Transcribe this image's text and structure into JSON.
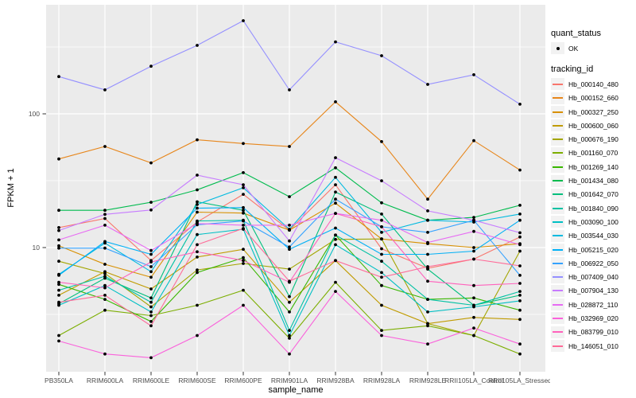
{
  "figure": {
    "background": "#FFFFFF",
    "panel_background": "#EBEBEB",
    "grid_color": "#FFFFFF",
    "point_color": "#000000",
    "axis_text_color": "#4D4D4D",
    "axis_tick_color": "#333333"
  },
  "legend": {
    "position": "right",
    "key_background": "#F2F2F2",
    "quant_status_title": "quant_status",
    "quant_ok_label": "OK",
    "tracking_id_title": "tracking_id"
  },
  "chart_data": {
    "type": "line",
    "title": "",
    "xlabel": "sample_name",
    "ylabel": "FPKM + 1",
    "y_scale": "log10",
    "y_ticks": [
      10,
      100
    ],
    "y_tick_labels": [
      "10",
      "100"
    ],
    "y_minor_gridlines": [
      3.162,
      31.62,
      316.2
    ],
    "ylim": [
      1.18,
      655
    ],
    "grid": true,
    "legend_position": "right",
    "point_marker": "black dot (quant_status OK)",
    "x_categories": [
      "PB350LA",
      "RRIM600LA",
      "RRIM600LE",
      "RRIM600SE",
      "RRIM600PE",
      "RRIM901LA",
      "RRIM928BA",
      "RRIM928LA",
      "RRIM928LE",
      "RRII105LA_Control",
      "RRII105LA_Stressed"
    ],
    "series": [
      {
        "name": "Hb_000140_480",
        "color": "#F8766D",
        "values": [
          14.1,
          16.5,
          8.0,
          15.5,
          25.0,
          13.5,
          29.5,
          9.8,
          7.0,
          8.2,
          12.0
        ]
      },
      {
        "name": "Hb_000152_660",
        "color": "#E7861B",
        "values": [
          46,
          57,
          43,
          64,
          60,
          57,
          123,
          62,
          23,
          63,
          38
        ]
      },
      {
        "name": "Hb_000327_250",
        "color": "#D89000",
        "values": [
          10.3,
          7.5,
          6.0,
          18.4,
          18.1,
          13.5,
          21.5,
          11.6,
          10.7,
          10.0,
          10.7
        ]
      },
      {
        "name": "Hb_000600_060",
        "color": "#C09B00",
        "values": [
          4.4,
          6.6,
          4.9,
          8.5,
          9.7,
          3.9,
          8.0,
          3.7,
          2.7,
          3.0,
          2.9
        ]
      },
      {
        "name": "Hb_000676_190",
        "color": "#A3A500",
        "values": [
          7.9,
          6.4,
          3.6,
          6.8,
          7.6,
          6.9,
          11.5,
          11.6,
          2.7,
          2.2,
          9.4
        ]
      },
      {
        "name": "Hb_001160_070",
        "color": "#7CAE00",
        "values": [
          2.2,
          3.4,
          3.1,
          3.7,
          4.8,
          2.1,
          5.5,
          2.4,
          2.6,
          2.2,
          1.6
        ]
      },
      {
        "name": "Hb_001269_140",
        "color": "#39B600",
        "values": [
          5.3,
          4.1,
          2.8,
          6.5,
          8.4,
          3.3,
          12.4,
          5.2,
          4.1,
          4.2,
          3.4
        ]
      },
      {
        "name": "Hb_001434_080",
        "color": "#00BB4E",
        "values": [
          19,
          19,
          21.8,
          27,
          36.3,
          24,
          39.5,
          21.6,
          16,
          16.8,
          20.7
        ]
      },
      {
        "name": "Hb_001642_070",
        "color": "#00BF7D",
        "values": [
          3.8,
          5.9,
          4.2,
          22,
          19,
          4.3,
          26,
          17.8,
          6.9,
          3.7,
          4.4
        ]
      },
      {
        "name": "Hb_001840_090",
        "color": "#00C1A3",
        "values": [
          4.8,
          6.1,
          3.9,
          15.8,
          16,
          2.4,
          12.4,
          7.9,
          4.1,
          3.7,
          4.7
        ]
      },
      {
        "name": "Hb_003090_100",
        "color": "#00BFC4",
        "values": [
          3.7,
          5.2,
          3.3,
          12.5,
          13.7,
          2.2,
          10.5,
          6.5,
          3.3,
          3.6,
          4.0
        ]
      },
      {
        "name": "Hb_003544_030",
        "color": "#00BAE0",
        "values": [
          6.3,
          10.8,
          6.6,
          21,
          28,
          13.7,
          33.5,
          13,
          16,
          15.5,
          17.8
        ]
      },
      {
        "name": "Hb_005215_020",
        "color": "#00B0F6",
        "values": [
          6.2,
          11.1,
          8.9,
          19.7,
          19.9,
          9.7,
          14,
          8.9,
          8.9,
          9.4,
          16
        ]
      },
      {
        "name": "Hb_006922_050",
        "color": "#35A2FF",
        "values": [
          9.9,
          9.9,
          7.2,
          14.8,
          15.8,
          10.1,
          23,
          14.3,
          13,
          16,
          6.2
        ]
      },
      {
        "name": "Hb_007409_040",
        "color": "#9590FF",
        "values": [
          190,
          151,
          227,
          325,
          497,
          151,
          345,
          272,
          166,
          196,
          118
        ]
      },
      {
        "name": "Hb_007904_130",
        "color": "#C77CFF",
        "values": [
          13.4,
          17.7,
          19.1,
          34.8,
          29.5,
          11.2,
          47,
          31.6,
          18.8,
          16,
          12.9
        ]
      },
      {
        "name": "Hb_028872_110",
        "color": "#E76BF3",
        "values": [
          11.4,
          14.7,
          9.5,
          15.1,
          14.7,
          14.7,
          18,
          16,
          10.9,
          13.2,
          10.5
        ]
      },
      {
        "name": "Hb_032969_020",
        "color": "#FA62DB",
        "values": [
          2.0,
          1.6,
          1.5,
          2.2,
          3.7,
          1.6,
          4.7,
          2.2,
          1.9,
          2.5,
          1.9
        ]
      },
      {
        "name": "Hb_083799_010",
        "color": "#FF62BC",
        "values": [
          5.5,
          5.0,
          7.8,
          9.3,
          8.0,
          5.5,
          18,
          14.3,
          5.6,
          5.2,
          5.4
        ]
      },
      {
        "name": "Hb_146051_010",
        "color": "#FF6A98",
        "values": [
          3.9,
          4.4,
          2.6,
          10.5,
          13.9,
          5.6,
          8.0,
          6.0,
          7.2,
          8.2,
          7.3
        ]
      }
    ]
  }
}
